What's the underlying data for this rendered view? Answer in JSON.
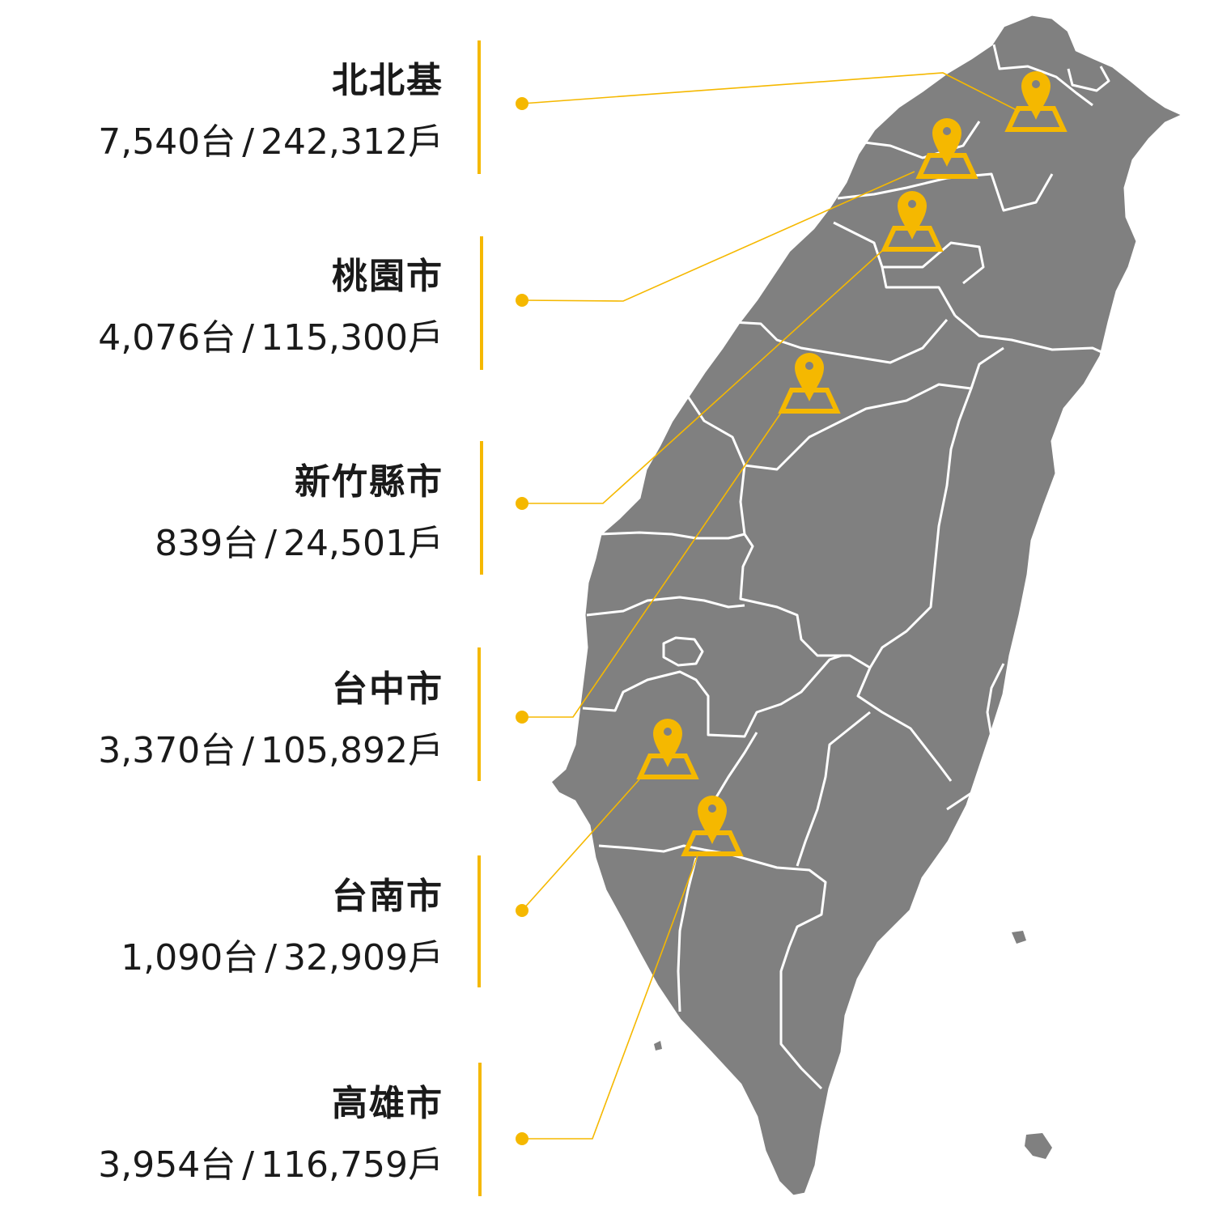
{
  "accent_color": "#F5B800",
  "map_fill": "#808080",
  "border_color": "#FFFFFF",
  "regions": [
    {
      "name": "北北基",
      "units": "7,540台",
      "separator": "/",
      "households": "242,312戶",
      "marker_icon": "map-pin-icon"
    },
    {
      "name": "桃園市",
      "units": "4,076台",
      "separator": "/",
      "households": "115,300戶",
      "marker_icon": "map-pin-icon"
    },
    {
      "name": "新竹縣市",
      "units": "839台",
      "separator": "/",
      "households": "24,501戶",
      "marker_icon": "map-pin-icon"
    },
    {
      "name": "台中市",
      "units": "3,370台",
      "separator": "/",
      "households": "105,892戶",
      "marker_icon": "map-pin-icon"
    },
    {
      "name": "台南市",
      "units": "1,090台",
      "separator": "/",
      "households": "32,909戶",
      "marker_icon": "map-pin-icon"
    },
    {
      "name": "高雄市",
      "units": "3,954台",
      "separator": "/",
      "households": "116,759戶",
      "marker_icon": "map-pin-icon"
    }
  ]
}
